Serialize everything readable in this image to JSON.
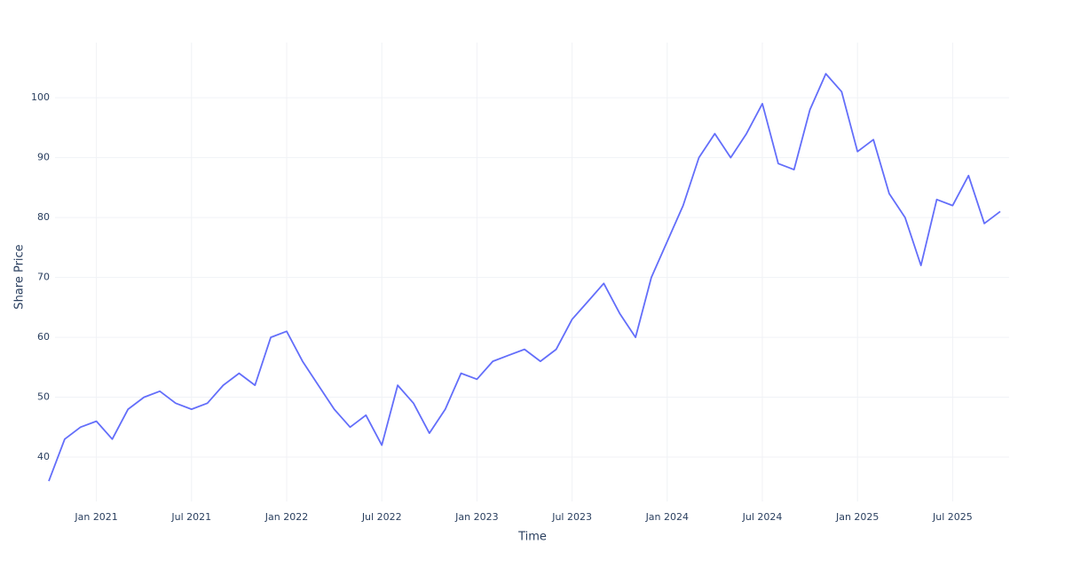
{
  "chart_data": {
    "type": "line",
    "x_label": "Time",
    "y_label": "Share Price",
    "x": [
      "2020-10",
      "2020-11",
      "2020-12",
      "2021-01",
      "2021-02",
      "2021-03",
      "2021-04",
      "2021-05",
      "2021-06",
      "2021-07",
      "2021-08",
      "2021-09",
      "2021-10",
      "2021-11",
      "2021-12",
      "2022-01",
      "2022-02",
      "2022-03",
      "2022-04",
      "2022-05",
      "2022-06",
      "2022-07",
      "2022-08",
      "2022-09",
      "2022-10",
      "2022-11",
      "2022-12",
      "2023-01",
      "2023-02",
      "2023-03",
      "2023-04",
      "2023-05",
      "2023-06",
      "2023-07",
      "2023-08",
      "2023-09",
      "2023-10",
      "2023-11",
      "2023-12",
      "2024-01",
      "2024-02",
      "2024-03",
      "2024-04",
      "2024-05",
      "2024-06",
      "2024-07",
      "2024-08",
      "2024-09",
      "2024-10",
      "2024-11",
      "2024-12",
      "2025-01",
      "2025-02",
      "2025-03",
      "2025-04",
      "2025-05",
      "2025-06",
      "2025-07",
      "2025-08",
      "2025-09",
      "2025-10"
    ],
    "series": [
      {
        "name": "Share Price",
        "color": "#636efa",
        "values": [
          36,
          43,
          45,
          46,
          43,
          48,
          50,
          51,
          49,
          48,
          49,
          52,
          54,
          52,
          60,
          61,
          56,
          52,
          48,
          45,
          47,
          42,
          52,
          49,
          44,
          48,
          54,
          53,
          56,
          57,
          58,
          56,
          58,
          63,
          66,
          69,
          64,
          60,
          70,
          76,
          82,
          90,
          94,
          90,
          94,
          99,
          89,
          88,
          98,
          104,
          101,
          91,
          93,
          84,
          80,
          72,
          83,
          82,
          87,
          79,
          81
        ]
      }
    ],
    "xlim": [
      "2020-10",
      "2025-10"
    ],
    "xticks": [
      {
        "value": "2021-01",
        "label": "Jan 2021"
      },
      {
        "value": "2021-07",
        "label": "Jul 2021"
      },
      {
        "value": "2022-01",
        "label": "Jan 2022"
      },
      {
        "value": "2022-07",
        "label": "Jul 2022"
      },
      {
        "value": "2023-01",
        "label": "Jan 2023"
      },
      {
        "value": "2023-07",
        "label": "Jul 2023"
      },
      {
        "value": "2024-01",
        "label": "Jan 2024"
      },
      {
        "value": "2024-07",
        "label": "Jul 2024"
      },
      {
        "value": "2025-01",
        "label": "Jan 2025"
      },
      {
        "value": "2025-07",
        "label": "Jul 2025"
      }
    ],
    "ylim": [
      32.6,
      109.2
    ],
    "yticks": [
      40,
      50,
      60,
      70,
      80,
      90,
      100
    ],
    "grid": true
  }
}
